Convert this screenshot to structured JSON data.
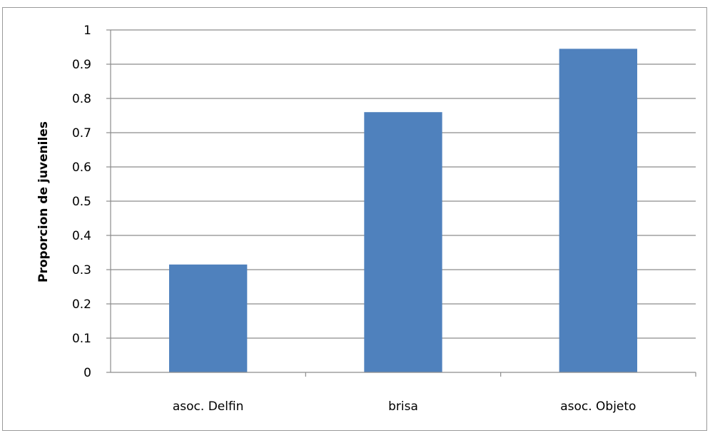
{
  "chart_data": {
    "type": "bar",
    "title": "",
    "xlabel": "",
    "ylabel": "Proporcion de juveniles",
    "categories": [
      "asoc. Delfin",
      "brisa",
      "asoc. Objeto"
    ],
    "values": [
      0.315,
      0.76,
      0.945
    ],
    "ylim": [
      0,
      1
    ],
    "yticks": [
      "0",
      "0.1",
      "0.2",
      "0.3",
      "0.4",
      "0.5",
      "0.6",
      "0.7",
      "0.8",
      "0.9",
      "1"
    ],
    "grid": true,
    "legend": "none",
    "colors": {
      "bar": "#4F81BD",
      "grid": "#8c8c8c",
      "axis": "#8c8c8c",
      "frame": "#9a9a9a"
    }
  }
}
